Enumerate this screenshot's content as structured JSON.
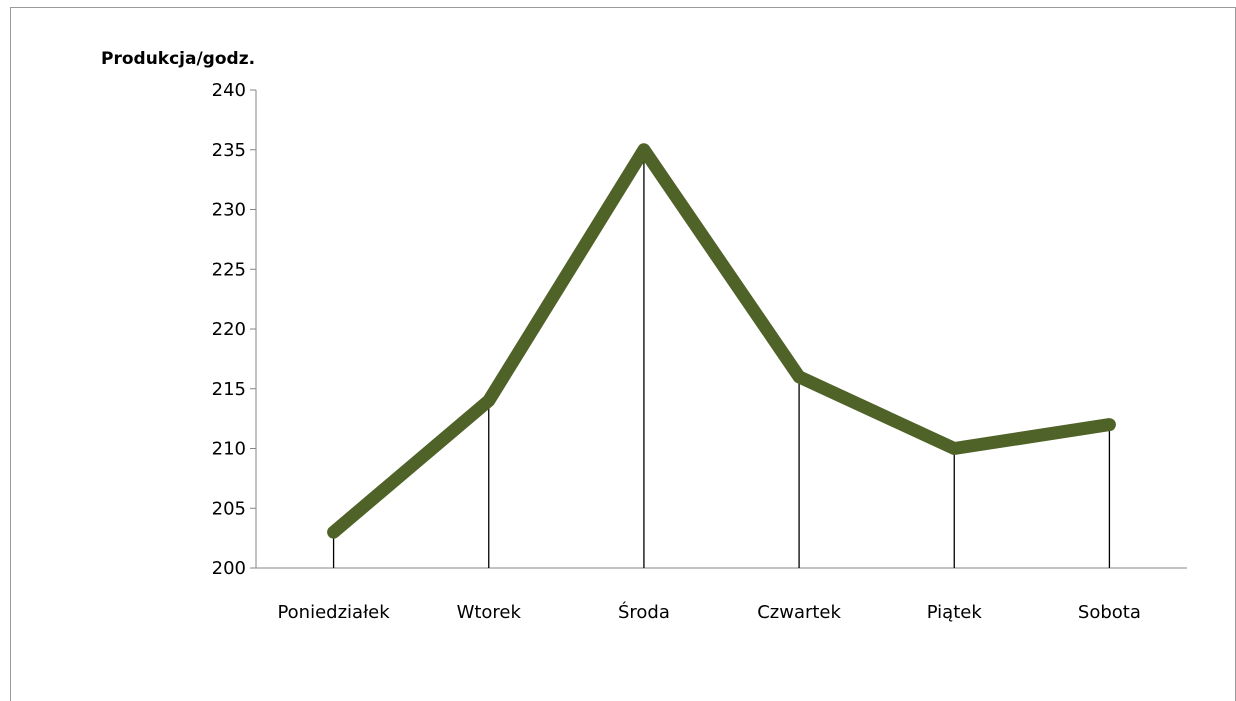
{
  "chart_data": {
    "type": "line",
    "ylabel": "Produkcja/godz.",
    "categories": [
      "Poniedziałek",
      "Wtorek",
      "Środa",
      "Czwartek",
      "Piątek",
      "Sobota"
    ],
    "series": [
      {
        "values": [
          203,
          214,
          235,
          216,
          210,
          212
        ],
        "color": "#4f6228"
      }
    ],
    "ylim": [
      200,
      240
    ],
    "yticks": [
      "200",
      "205",
      "210",
      "215",
      "220",
      "225",
      "230",
      "235",
      "240"
    ],
    "drop_lines": true,
    "grid": false,
    "legend": "none"
  }
}
